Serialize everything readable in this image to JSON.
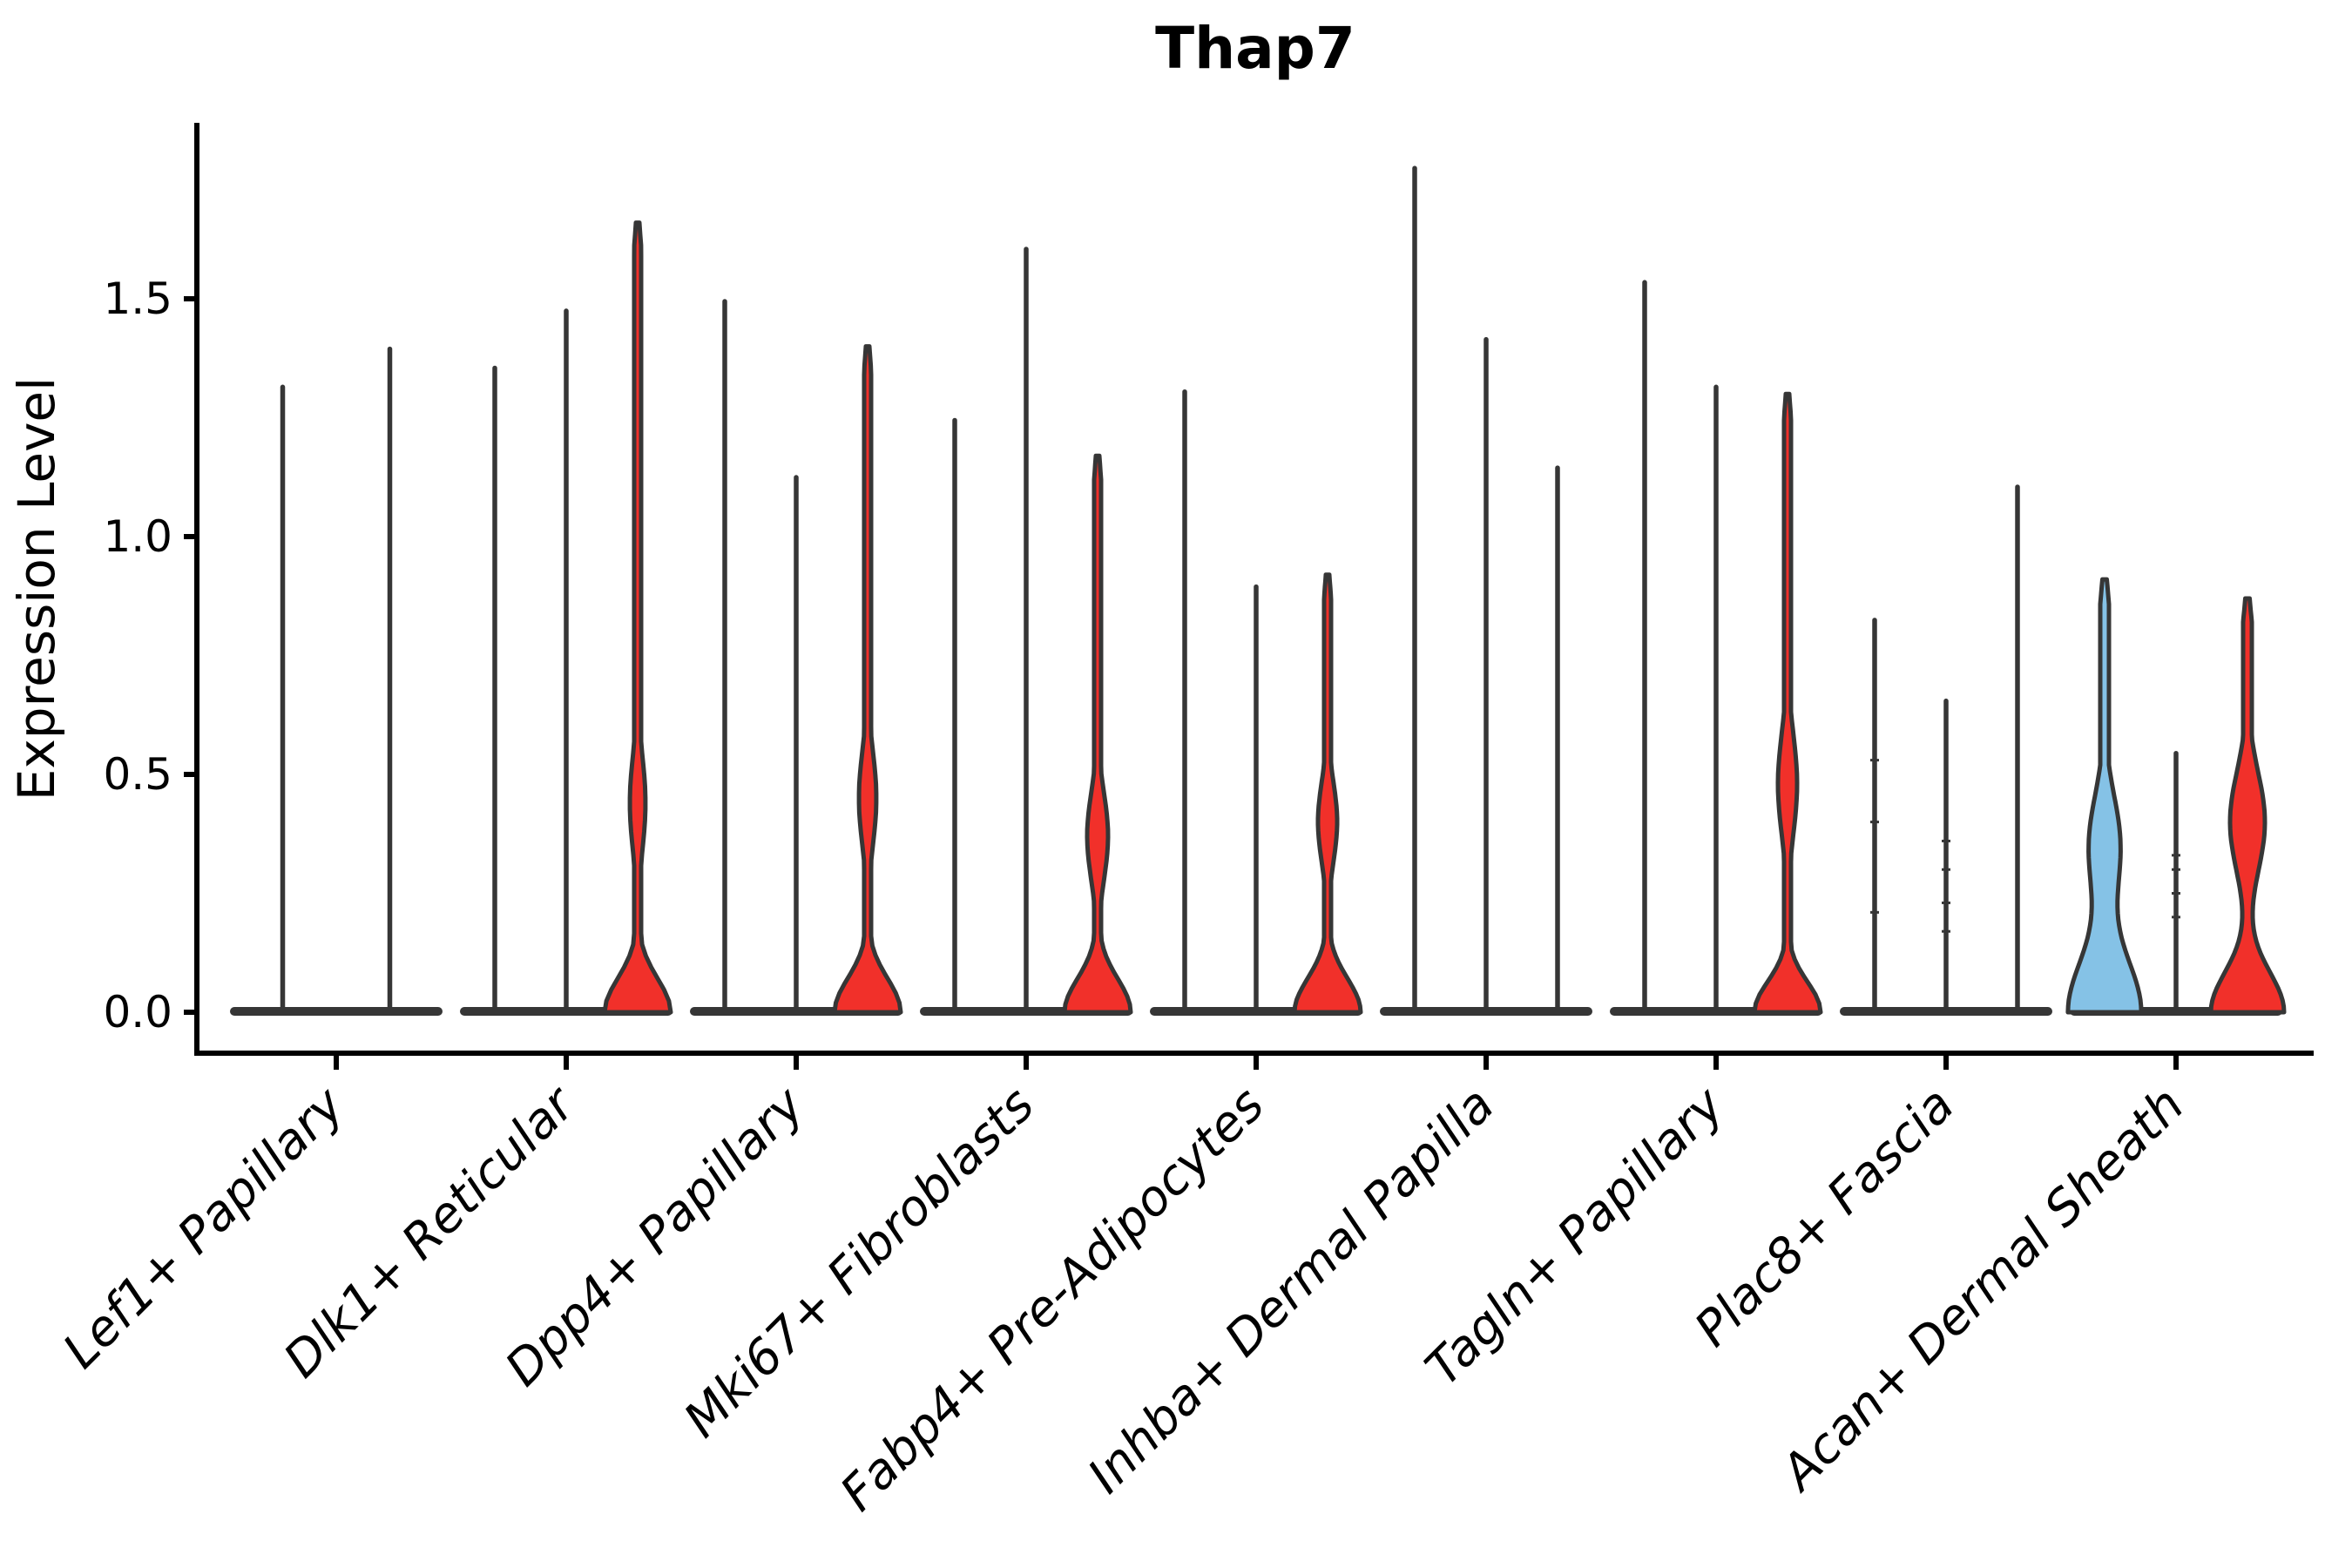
{
  "title": "Thap7",
  "y_axis": {
    "label": "Expression Level",
    "ticks": [
      "0.0",
      "0.5",
      "1.0",
      "1.5"
    ],
    "tick_values": [
      0.0,
      0.5,
      1.0,
      1.5
    ]
  },
  "colors": {
    "red": "#F1302A",
    "blue": "#85C2E6",
    "violin_line": "#363636",
    "axis": "#000000"
  },
  "chart_data": {
    "type": "violin",
    "title": "Thap7",
    "xlabel": "",
    "ylabel": "Expression Level",
    "ylim": [
      -0.09,
      1.87
    ],
    "grid": false,
    "legend": "none",
    "categories": [
      "Lef1+ Papillary",
      "Dlk1+ Reticular",
      "Dpp4+ Papillary",
      "Mki67+ Fibroblasts",
      "Fabp4+ Pre-Adipocytes",
      "Inhba+ Dermal Papilla",
      "Tagln+ Papillary",
      "Plac8+ Fascia",
      "Acan+ Dermal Sheath"
    ],
    "groups": [
      {
        "category": "Lef1+ Papillary",
        "violins": [
          {
            "max": 1.32,
            "fill": "none"
          },
          {
            "max": 1.4,
            "fill": "none"
          }
        ]
      },
      {
        "category": "Dlk1+ Reticular",
        "violins": [
          {
            "max": 1.36,
            "fill": "none"
          },
          {
            "max": 1.48,
            "fill": "none"
          },
          {
            "max": 1.66,
            "fill": "red",
            "shape": {
              "base": 38,
              "bs": 0.1,
              "bulge": 9,
              "bc": 0.44,
              "bw": 0.14,
              "stem": 4
            }
          }
        ]
      },
      {
        "category": "Dpp4+ Papillary",
        "violins": [
          {
            "max": 1.5,
            "fill": "none"
          },
          {
            "max": 1.13,
            "fill": "none"
          },
          {
            "max": 1.4,
            "fill": "red",
            "shape": {
              "base": 38,
              "bs": 0.1,
              "bulge": 10,
              "bc": 0.45,
              "bw": 0.14,
              "stem": 4
            }
          }
        ]
      },
      {
        "category": "Mki67+ Fibroblasts",
        "violins": [
          {
            "max": 1.25,
            "fill": "none"
          },
          {
            "max": 1.61,
            "fill": "none"
          },
          {
            "max": 1.17,
            "fill": "red",
            "shape": {
              "base": 38,
              "bs": 0.1,
              "bulge": 12,
              "bc": 0.37,
              "bw": 0.13,
              "stem": 4
            }
          }
        ]
      },
      {
        "category": "Fabp4+ Pre-Adipocytes",
        "violins": [
          {
            "max": 1.31,
            "fill": "none"
          },
          {
            "max": 0.9,
            "fill": "none"
          },
          {
            "max": 0.92,
            "fill": "red",
            "shape": {
              "base": 38,
              "bs": 0.1,
              "bulge": 11,
              "bc": 0.4,
              "bw": 0.12,
              "stem": 4
            }
          }
        ]
      },
      {
        "category": "Inhba+ Dermal Papilla",
        "violins": [
          {
            "max": 1.78,
            "fill": "none"
          },
          {
            "max": 1.42,
            "fill": "none"
          },
          {
            "max": 1.15,
            "fill": "none"
          }
        ]
      },
      {
        "category": "Tagln+ Papillary",
        "violins": [
          {
            "max": 1.54,
            "fill": "none"
          },
          {
            "max": 1.32,
            "fill": "none"
          },
          {
            "max": 1.3,
            "fill": "red",
            "shape": {
              "base": 38,
              "bs": 0.09,
              "bulge": 11,
              "bc": 0.48,
              "bw": 0.15,
              "stem": 4
            }
          }
        ]
      },
      {
        "category": "Plac8+ Fascia",
        "violins": [
          {
            "max": 0.83,
            "fill": "none",
            "marks": [
              0.21,
              0.4,
              0.53
            ]
          },
          {
            "max": 0.66,
            "fill": "none",
            "marks": [
              0.17,
              0.23,
              0.3,
              0.36
            ]
          },
          {
            "max": 1.11,
            "fill": "none"
          }
        ]
      },
      {
        "category": "Acan+ Dermal Sheath",
        "violins": [
          {
            "max": 0.91,
            "fill": "blue",
            "shape": {
              "base": 42,
              "bs": 0.16,
              "bulge": 18,
              "bc": 0.35,
              "bw": 0.15,
              "stem": 5
            }
          },
          {
            "max": 0.55,
            "fill": "none",
            "marks": [
              0.2,
              0.25,
              0.3,
              0.33
            ]
          },
          {
            "max": 0.87,
            "fill": "red",
            "shape": {
              "base": 42,
              "bs": 0.12,
              "bulge": 20,
              "bc": 0.4,
              "bw": 0.15,
              "stem": 5
            }
          }
        ]
      }
    ]
  }
}
